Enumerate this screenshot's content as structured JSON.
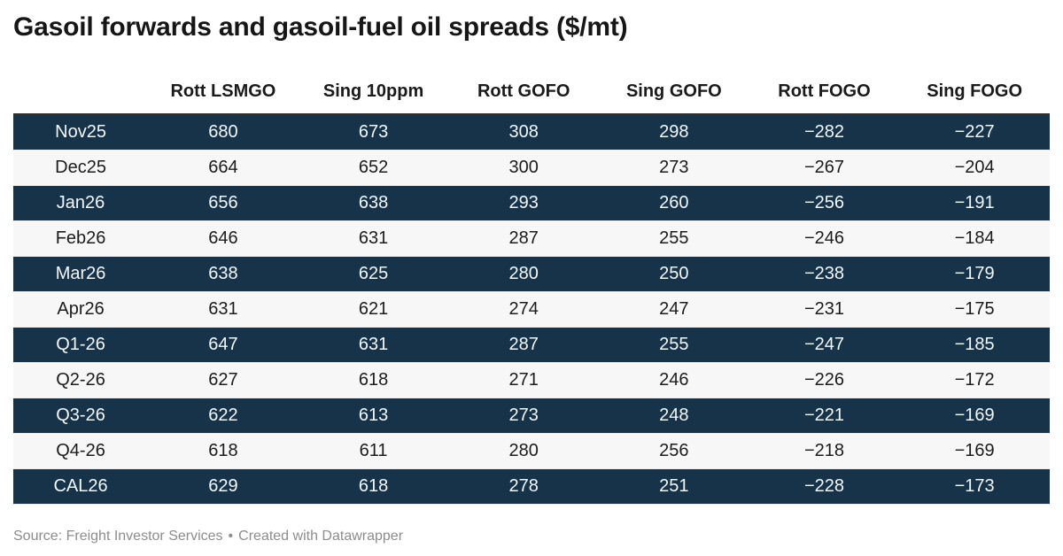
{
  "title": "Gasoil forwards and gasoil-fuel oil spreads ($/mt)",
  "footer": {
    "source": "Source: Freight Investor Services",
    "separator": "•",
    "attribution": "Created with Datawrapper"
  },
  "colors": {
    "row_dark_bg": "#16334a",
    "row_dark_text": "#f3f7f9",
    "row_light_bg": "#f7f7f7",
    "row_light_text": "#1c1c1c",
    "title_text": "#161616",
    "header_text": "#1a1a1a",
    "table_top_border": "#2f2f2f",
    "footer_text": "#8d8d8d"
  },
  "chart_data": {
    "type": "table",
    "title": "Gasoil forwards and gasoil-fuel oil spreads ($/mt)",
    "columns": [
      "",
      "Rott LSMGO",
      "Sing 10ppm",
      "Rott GOFO",
      "Sing GOFO",
      "Rott FOGO",
      "Sing FOGO"
    ],
    "rows": [
      {
        "label": "Nov25",
        "values": [
          680,
          673,
          308,
          298,
          -282,
          -227
        ]
      },
      {
        "label": "Dec25",
        "values": [
          664,
          652,
          300,
          273,
          -267,
          -204
        ]
      },
      {
        "label": "Jan26",
        "values": [
          656,
          638,
          293,
          260,
          -256,
          -191
        ]
      },
      {
        "label": "Feb26",
        "values": [
          646,
          631,
          287,
          255,
          -246,
          -184
        ]
      },
      {
        "label": "Mar26",
        "values": [
          638,
          625,
          280,
          250,
          -238,
          -179
        ]
      },
      {
        "label": "Apr26",
        "values": [
          631,
          621,
          274,
          247,
          -231,
          -175
        ]
      },
      {
        "label": "Q1-26",
        "values": [
          647,
          631,
          287,
          255,
          -247,
          -185
        ]
      },
      {
        "label": "Q2-26",
        "values": [
          627,
          618,
          271,
          246,
          -226,
          -172
        ]
      },
      {
        "label": "Q3-26",
        "values": [
          622,
          613,
          273,
          248,
          -221,
          -169
        ]
      },
      {
        "label": "Q4-26",
        "values": [
          618,
          611,
          280,
          256,
          -218,
          -169
        ]
      },
      {
        "label": "CAL26",
        "values": [
          629,
          618,
          278,
          251,
          -228,
          -173
        ]
      }
    ],
    "layout": {
      "striping": "alternating rows, first row dark navy",
      "cell_alignment": "center",
      "number_format": "negatives rendered with U+2212 minus sign",
      "legend": "none",
      "grid": "row separators only"
    },
    "source": "Freight Investor Services",
    "attribution": "Created with Datawrapper"
  }
}
